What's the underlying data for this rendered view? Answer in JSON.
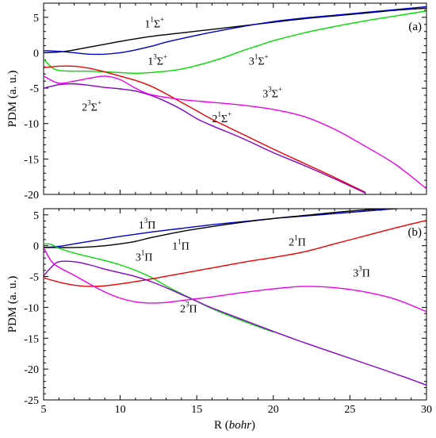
{
  "chart_data": [
    {
      "type": "line",
      "panel_label": "(a)",
      "ylabel": "PDM (a. u.)",
      "xlabel": "",
      "xlim": [
        5,
        30
      ],
      "ylim": [
        -20,
        7
      ],
      "xticks": [
        "5",
        "10",
        "15",
        "20",
        "25",
        "30"
      ],
      "yticks": [
        "5",
        "0",
        "-5",
        "-10",
        "-15",
        "-20"
      ],
      "series": [
        {
          "name": "1¹Σ⁺",
          "color": "#000000",
          "x": [
            5,
            6,
            7,
            8,
            9,
            10,
            12,
            14,
            16,
            18,
            20,
            22,
            24,
            26,
            28,
            30
          ],
          "y": [
            0.0,
            0.1,
            0.4,
            0.8,
            1.2,
            1.6,
            2.3,
            2.8,
            3.3,
            3.8,
            4.3,
            4.8,
            5.2,
            5.6,
            6.0,
            6.3
          ]
        },
        {
          "name": "1³Σ⁺",
          "color": "#0000cc",
          "x": [
            5,
            6,
            7,
            8,
            9,
            10,
            11,
            12,
            13,
            14,
            16,
            18,
            20,
            22,
            24,
            26,
            28,
            30
          ],
          "y": [
            0.3,
            0.2,
            0.0,
            -0.2,
            -0.2,
            0.0,
            0.4,
            0.9,
            1.5,
            2.0,
            2.9,
            3.7,
            4.4,
            4.9,
            5.3,
            5.7,
            6.1,
            6.5
          ]
        },
        {
          "name": "3¹Σ⁺",
          "color": "#00dd00",
          "x": [
            5,
            5.5,
            6,
            7,
            8,
            9,
            10,
            11,
            12,
            13,
            14,
            15,
            16,
            17,
            18,
            19,
            20,
            22,
            24,
            26,
            28,
            30
          ],
          "y": [
            -0.9,
            -2.0,
            -2.5,
            -2.6,
            -2.6,
            -2.7,
            -2.8,
            -2.9,
            -2.8,
            -2.6,
            -2.3,
            -1.8,
            -1.2,
            -0.5,
            0.3,
            1.0,
            1.7,
            2.8,
            3.7,
            4.5,
            5.2,
            5.9
          ]
        },
        {
          "name": "2¹Σ⁺",
          "color": "#ee0000",
          "x": [
            5,
            6,
            7,
            8,
            9,
            10,
            11,
            12,
            13,
            14,
            15,
            16,
            18,
            20,
            22,
            24,
            26
          ],
          "y": [
            -2.1,
            -1.9,
            -1.9,
            -2.2,
            -2.7,
            -3.3,
            -3.9,
            -4.7,
            -5.8,
            -7.0,
            -8.2,
            -9.4,
            -11.5,
            -13.6,
            -15.6,
            -17.6,
            -19.7
          ]
        },
        {
          "name": "2³Σ⁺",
          "color": "#8800cc",
          "x": [
            5,
            6,
            7,
            8,
            9,
            10,
            11,
            12,
            13,
            14,
            15,
            16,
            18,
            20,
            22,
            24,
            26
          ],
          "y": [
            -5.0,
            -4.5,
            -4.4,
            -4.6,
            -4.9,
            -5.1,
            -5.4,
            -6.0,
            -6.9,
            -8.0,
            -9.3,
            -10.3,
            -12.1,
            -14.1,
            -15.9,
            -17.8,
            -19.8
          ]
        },
        {
          "name": "3³Σ⁺",
          "color": "#ee00ee",
          "x": [
            5,
            6,
            7,
            8,
            9,
            10,
            11,
            12,
            14,
            16,
            18,
            20,
            22,
            24,
            26,
            28,
            30
          ],
          "y": [
            -3.3,
            -4.3,
            -4.0,
            -3.6,
            -3.3,
            -3.8,
            -5.0,
            -5.9,
            -6.6,
            -7.0,
            -7.4,
            -8.0,
            -9.0,
            -10.8,
            -13.2,
            -15.8,
            -19.2
          ]
        }
      ],
      "annotations": [
        {
          "base": "1",
          "sup1": "1",
          "sym": "Σ",
          "sup2": "+",
          "x": 11.6,
          "y": 3.6
        },
        {
          "base": "1",
          "sup1": "3",
          "sym": "Σ",
          "sup2": "+",
          "x": 11.8,
          "y": -1.7
        },
        {
          "base": "3",
          "sup1": "1",
          "sym": "Σ",
          "sup2": "+",
          "x": 18.4,
          "y": -1.7
        },
        {
          "base": "2",
          "sup1": "3",
          "sym": "Σ",
          "sup2": "+",
          "x": 7.5,
          "y": -8.2
        },
        {
          "base": "2",
          "sup1": "1",
          "sym": "Σ",
          "sup2": "+",
          "x": 16.0,
          "y": -9.8
        },
        {
          "base": "3",
          "sup1": "3",
          "sym": "Σ",
          "sup2": "+",
          "x": 19.3,
          "y": -6.3
        }
      ]
    },
    {
      "type": "line",
      "panel_label": "(b)",
      "ylabel": "PDM (a. u.)",
      "xlabel": "R (bohr)",
      "xlim": [
        5,
        30
      ],
      "ylim": [
        -25,
        6
      ],
      "xticks": [
        "5",
        "10",
        "15",
        "20",
        "25",
        "30"
      ],
      "yticks": [
        "5",
        "0",
        "-5",
        "-10",
        "-15",
        "-20",
        "-25"
      ],
      "series": [
        {
          "name": "1³Π",
          "color": "#0000cc",
          "x": [
            5,
            6,
            7,
            8,
            9,
            10,
            12,
            14,
            16,
            18,
            20,
            22,
            24,
            26,
            28,
            30
          ],
          "y": [
            -0.3,
            -0.1,
            0.3,
            0.7,
            1.1,
            1.5,
            2.2,
            2.8,
            3.4,
            3.9,
            4.4,
            4.8,
            5.2,
            5.6,
            6.0,
            6.2
          ]
        },
        {
          "name": "1¹Π",
          "color": "#000000",
          "x": [
            5,
            6,
            7,
            8,
            9,
            10,
            11,
            12,
            14,
            16,
            18,
            20,
            22,
            24,
            26,
            28,
            30
          ],
          "y": [
            -0.3,
            -0.3,
            -0.3,
            -0.2,
            0.0,
            0.3,
            0.7,
            1.3,
            2.3,
            3.1,
            3.8,
            4.4,
            4.9,
            5.4,
            5.8,
            6.1,
            6.2
          ]
        },
        {
          "name": "3¹Π",
          "color": "#00dd00",
          "x": [
            5,
            5.5,
            6,
            7,
            8,
            9,
            10,
            11,
            12,
            13,
            14,
            15,
            16,
            18,
            20
          ],
          "y": [
            0.3,
            0.2,
            -0.4,
            -1.2,
            -1.8,
            -2.4,
            -3.1,
            -4.0,
            -5.1,
            -6.5,
            -7.8,
            -9.0,
            -10.2,
            -12.2,
            -14.0
          ]
        },
        {
          "name": "2¹Π",
          "color": "#ee0000",
          "x": [
            5,
            6,
            7,
            8,
            9,
            10,
            12,
            14,
            16,
            18,
            20,
            22,
            24,
            26,
            28,
            30
          ],
          "y": [
            -5.2,
            -5.9,
            -6.4,
            -6.6,
            -6.5,
            -6.2,
            -5.4,
            -4.5,
            -3.6,
            -2.7,
            -1.9,
            -1.0,
            0.3,
            1.6,
            2.9,
            4.1
          ]
        },
        {
          "name": "2³Π",
          "color": "#8800cc",
          "x": [
            5,
            5.5,
            6,
            7,
            8,
            9,
            10,
            11,
            12,
            13,
            14,
            15,
            16,
            18,
            20,
            22,
            24,
            26,
            28,
            30
          ],
          "y": [
            -4.9,
            -3.5,
            -2.6,
            -2.6,
            -3.1,
            -3.8,
            -4.4,
            -5.0,
            -5.8,
            -6.8,
            -7.9,
            -9.0,
            -10.1,
            -12.0,
            -13.9,
            -15.7,
            -17.4,
            -19.1,
            -20.8,
            -22.6
          ]
        },
        {
          "name": "3³Π",
          "color": "#ee00ee",
          "x": [
            5,
            5.5,
            6,
            7,
            8,
            9,
            10,
            11,
            12,
            13,
            14,
            15,
            16,
            18,
            20,
            22,
            24,
            26,
            28,
            30
          ],
          "y": [
            -0.3,
            -2.5,
            -3.5,
            -4.8,
            -6.2,
            -7.5,
            -8.5,
            -9.1,
            -9.3,
            -9.2,
            -8.9,
            -8.6,
            -8.3,
            -7.6,
            -7.0,
            -6.6,
            -6.8,
            -7.5,
            -8.7,
            -10.7
          ]
        }
      ],
      "annotations": [
        {
          "base": "1",
          "sup1": "3",
          "sym": "Π",
          "x": 11.2,
          "y": 2.8
        },
        {
          "base": "1",
          "sup1": "1",
          "sym": "Π",
          "x": 13.4,
          "y": -0.6
        },
        {
          "base": "3",
          "sup1": "1",
          "sym": "Π",
          "x": 11.0,
          "y": -2.4
        },
        {
          "base": "2",
          "sup1": "1",
          "sym": "Π",
          "x": 21.0,
          "y": 0.0
        },
        {
          "base": "2",
          "sup1": "3",
          "sym": "Π",
          "x": 13.9,
          "y": -10.8
        },
        {
          "base": "3",
          "sup1": "3",
          "sym": "Π",
          "x": 25.2,
          "y": -5.0
        }
      ]
    }
  ],
  "x_axis_label": {
    "prefix": "R (",
    "italic": "bohr",
    "suffix": ")"
  }
}
